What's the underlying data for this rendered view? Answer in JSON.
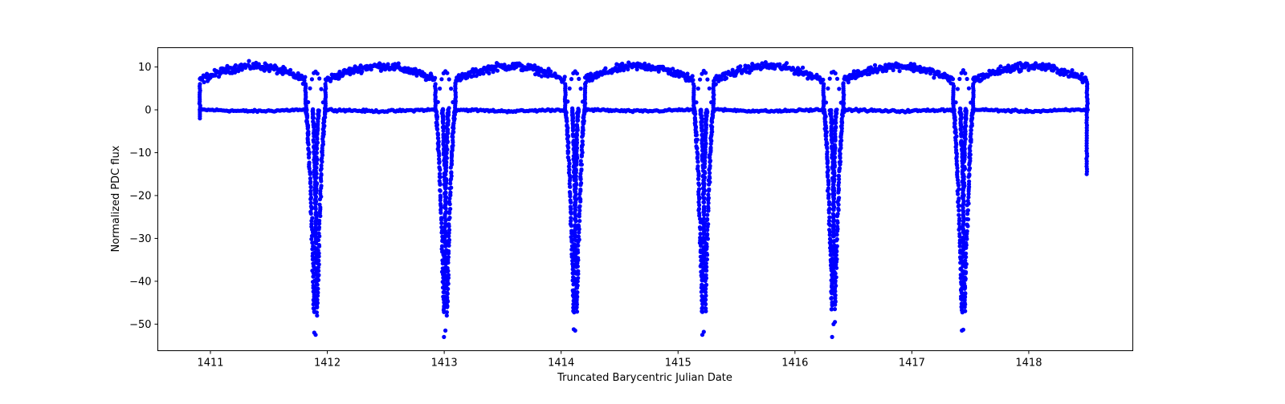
{
  "chart_data": {
    "type": "scatter",
    "title": "",
    "xlabel": "Truncated Barycentric Julian Date",
    "ylabel": "Normalized PDC flux",
    "xlim": [
      1410.55,
      1418.89
    ],
    "ylim": [
      -56.2,
      14.5
    ],
    "grid": false,
    "legend": null,
    "marker_color": "#0000ff",
    "marker": "circle",
    "x_ticks": [
      1411,
      1412,
      1413,
      1414,
      1415,
      1416,
      1417,
      1418
    ],
    "x_tick_labels": [
      "1411",
      "1412",
      "1413",
      "1414",
      "1415",
      "1416",
      "1417",
      "1418"
    ],
    "y_ticks": [
      10,
      0,
      -10,
      -20,
      -30,
      -40,
      -50
    ],
    "y_tick_labels": [
      "10",
      "0",
      "−10",
      "−20",
      "−30",
      "−40",
      "−50"
    ],
    "data_range_x": [
      1410.91,
      1418.5
    ],
    "baseline_level": 0,
    "upper_arch_peak": 10,
    "upper_arch_edge": 6,
    "secondary_bump_peak": 9,
    "series": [
      {
        "name": "PDC flux",
        "eclipses": [
          {
            "center": 1411.9,
            "min_flux": -47,
            "outliers": [
              -52,
              -52.5,
              -48
            ]
          },
          {
            "center": 1413.01,
            "min_flux": -47,
            "outliers": [
              -53,
              -51.5,
              -48
            ]
          },
          {
            "center": 1414.12,
            "min_flux": -47,
            "outliers": [
              -51.2,
              -51.5
            ]
          },
          {
            "center": 1415.22,
            "min_flux": -47,
            "outliers": [
              -52.5,
              -51.8
            ]
          },
          {
            "center": 1416.33,
            "min_flux": -46.5,
            "outliers": [
              -53,
              -50,
              -49.5
            ]
          },
          {
            "center": 1417.44,
            "min_flux": -47,
            "outliers": [
              -51.5,
              -51.3
            ]
          }
        ],
        "start_point": {
          "x": 1410.91,
          "y": -2
        },
        "end_point": {
          "x": 1418.5,
          "y": -15.5
        }
      }
    ]
  }
}
